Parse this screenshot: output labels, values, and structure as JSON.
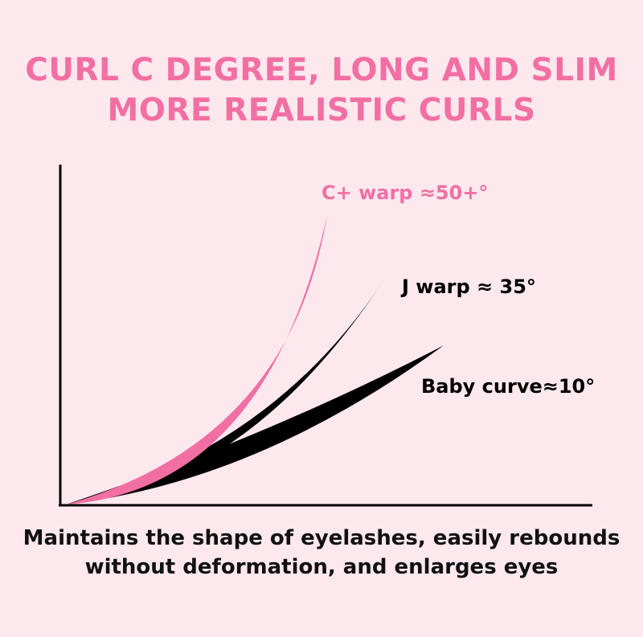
{
  "headline": {
    "line1": "CURL C DEGREE, LONG AND SLIM",
    "line2": "MORE REALISTIC CURLS"
  },
  "curves": [
    {
      "label": "C+ warp ≈50+°",
      "color": "#f26fa3"
    },
    {
      "label": "J warp ≈ 35°",
      "color": "#000000"
    },
    {
      "label": "Baby curve≈10°",
      "color": "#000000"
    }
  ],
  "caption": {
    "line1": "Maintains the shape of eyelashes, easily rebounds",
    "line2": "without deformation, and enlarges eyes"
  },
  "colors": {
    "background": "#fde8ee",
    "accent": "#f26fa3",
    "ink": "#000000"
  }
}
